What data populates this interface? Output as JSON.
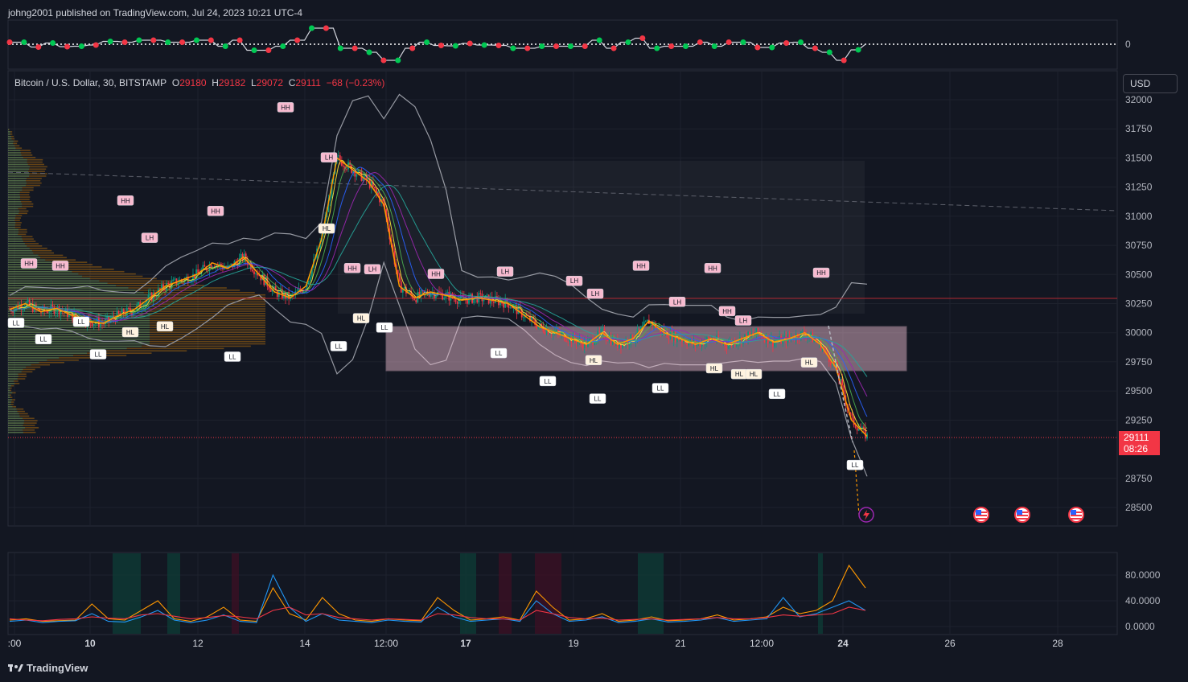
{
  "header": {
    "published_by": "johng2001 published on TradingView.com, Jul 24, 2023 10:21 UTC-4"
  },
  "legend": {
    "symbol": "Bitcoin / U.S. Dollar, 30, BITSTAMP",
    "o_label": "O",
    "o": "29180",
    "h_label": "H",
    "h": "29182",
    "l_label": "L",
    "l": "29072",
    "c_label": "C",
    "c": "29111",
    "change": "−68 (−0.23%)"
  },
  "currency_button": "USD",
  "last_price": {
    "price": "29111",
    "countdown": "08:26"
  },
  "top_panel": {
    "zero_label": "0"
  },
  "brand": "TradingView",
  "colors": {
    "bg": "#131722",
    "up": "#089981",
    "down": "#f23645",
    "accent": "#2962ff"
  },
  "chart_data": [
    {
      "type": "line",
      "title": "",
      "price_axis": [
        "32000",
        "31750",
        "31500",
        "31250",
        "31000",
        "30750",
        "30500",
        "30250",
        "30000",
        "29750",
        "29500",
        "29250",
        "28750",
        "28500"
      ],
      "price_ticks": [
        32000,
        31750,
        31500,
        31250,
        31000,
        30750,
        30500,
        30250,
        30000,
        29750,
        29500,
        29250,
        28750,
        28500
      ],
      "ylim": [
        28400,
        32100
      ],
      "time_axis": [
        ":00",
        "10",
        "12",
        "14",
        "12:00",
        "17",
        "19",
        "21",
        "12:00",
        "24",
        "26",
        "28"
      ],
      "series": [
        {
          "values": [
            30200,
            30250,
            30180,
            30210,
            30150,
            30100,
            30080,
            30150,
            30200,
            30300,
            30400,
            30450,
            30500,
            30600,
            30550,
            30650,
            30500,
            30350,
            30300,
            30400,
            30800,
            31500,
            31400,
            31300,
            31100,
            30400,
            30300,
            30350,
            30320,
            30280,
            30300,
            30280,
            30250,
            30150,
            30050,
            30000,
            29950,
            29900,
            30000,
            29900,
            29950,
            30100,
            30000,
            29950,
            29900,
            29950,
            29900,
            29950,
            30000,
            29920,
            29950,
            30000,
            29900,
            29700,
            29250,
            29111
          ]
        }
      ],
      "swing_labels": [
        {
          "t": "HH",
          "p": 31880
        },
        {
          "t": "LH",
          "p": 31450
        },
        {
          "t": "HH",
          "p": 31080
        },
        {
          "t": "HH",
          "p": 30990
        },
        {
          "t": "LH",
          "p": 30760
        },
        {
          "t": "HH",
          "p": 30500
        },
        {
          "t": "HH",
          "p": 30540
        },
        {
          "t": "HH",
          "p": 30520
        },
        {
          "t": "HH",
          "p": 30450
        },
        {
          "t": "LH",
          "p": 30490
        },
        {
          "t": "LH",
          "p": 30470
        },
        {
          "t": "HH",
          "p": 30520
        },
        {
          "t": "LH",
          "p": 30390
        },
        {
          "t": "LH",
          "p": 30280
        },
        {
          "t": "LH",
          "p": 30210
        },
        {
          "t": "HH",
          "p": 30500
        },
        {
          "t": "HH",
          "p": 30130
        },
        {
          "t": "LH",
          "p": 30050
        },
        {
          "t": "HH",
          "p": 30460
        },
        {
          "t": "HL",
          "p": 30950
        },
        {
          "t": "HL",
          "p": 30180
        },
        {
          "t": "HL",
          "p": 30110
        },
        {
          "t": "HL",
          "p": 30060
        },
        {
          "t": "HL",
          "p": 29820
        },
        {
          "t": "HL",
          "p": 29700
        },
        {
          "t": "HL",
          "p": 29750
        },
        {
          "t": "HL",
          "p": 29700
        },
        {
          "t": "HL",
          "p": 29800
        },
        {
          "t": "LL",
          "p": 30140
        },
        {
          "t": "LL",
          "p": 30000
        },
        {
          "t": "LL",
          "p": 30150
        },
        {
          "t": "LL",
          "p": 29870
        },
        {
          "t": "LL",
          "p": 29850
        },
        {
          "t": "LL",
          "p": 29940
        },
        {
          "t": "LL",
          "p": 30100
        },
        {
          "t": "LL",
          "p": 29880
        },
        {
          "t": "LL",
          "p": 29640
        },
        {
          "t": "LL",
          "p": 29490
        },
        {
          "t": "LL",
          "p": 29580
        },
        {
          "t": "LL",
          "p": 29530
        },
        {
          "t": "LL",
          "p": 28920
        }
      ]
    },
    {
      "type": "line",
      "title": "",
      "y_axis": [
        "80.0000",
        "40.0000",
        "0.0000"
      ],
      "y_ticks": [
        80,
        40,
        0
      ],
      "ylim": [
        -5,
        95
      ],
      "series": [
        {
          "color": "#ff9800",
          "values": [
            10,
            12,
            8,
            9,
            10,
            35,
            12,
            10,
            25,
            40,
            12,
            8,
            15,
            30,
            10,
            8,
            60,
            20,
            10,
            45,
            20,
            10,
            8,
            12,
            10,
            9,
            45,
            25,
            10,
            12,
            15,
            10,
            55,
            30,
            10,
            12,
            20,
            8,
            10,
            15,
            9,
            10,
            12,
            18,
            10,
            12,
            15,
            30,
            20,
            25,
            40,
            95,
            60
          ]
        },
        {
          "color": "#2196f3",
          "values": [
            8,
            10,
            6,
            8,
            9,
            20,
            8,
            7,
            15,
            25,
            10,
            6,
            10,
            18,
            8,
            6,
            80,
            30,
            8,
            20,
            10,
            8,
            6,
            10,
            8,
            7,
            30,
            15,
            8,
            10,
            12,
            8,
            40,
            20,
            8,
            10,
            15,
            6,
            8,
            12,
            7,
            8,
            10,
            14,
            8,
            10,
            12,
            45,
            15,
            20,
            30,
            40,
            25
          ]
        },
        {
          "color": "#f23645",
          "values": [
            12,
            10,
            9,
            11,
            12,
            15,
            13,
            12,
            18,
            20,
            16,
            12,
            14,
            17,
            15,
            12,
            25,
            30,
            18,
            20,
            14,
            12,
            10,
            12,
            11,
            10,
            20,
            18,
            14,
            12,
            12,
            10,
            25,
            20,
            14,
            12,
            13,
            10,
            11,
            12,
            10,
            11,
            12,
            14,
            12,
            12,
            14,
            18,
            16,
            18,
            20,
            30,
            25
          ]
        }
      ]
    }
  ]
}
